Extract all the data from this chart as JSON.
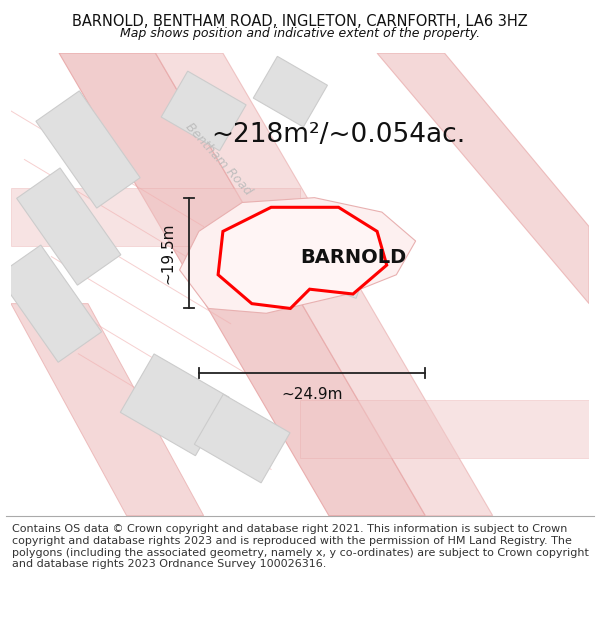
{
  "title": "BARNOLD, BENTHAM ROAD, INGLETON, CARNFORTH, LA6 3HZ",
  "subtitle": "Map shows position and indicative extent of the property.",
  "footer": "Contains OS data © Crown copyright and database right 2021. This information is subject to Crown copyright and database rights 2023 and is reproduced with the permission of HM Land Registry. The polygons (including the associated geometry, namely x, y co-ordinates) are subject to Crown copyright and database rights 2023 Ordnance Survey 100026316.",
  "background_color": "#ffffff",
  "area_label": "~218m²/~0.054ac.",
  "property_label": "BARNOLD",
  "dim_width": "~24.9m",
  "dim_height": "~19.5m",
  "road_label": "Bentham Road",
  "road_color": "#f0c8c8",
  "road_edge_color": "#e8a8a8",
  "building_fill": "#e0e0e0",
  "building_edge": "#cccccc",
  "red_color": "#ff0000",
  "arrow_color": "#222222",
  "title_fontsize": 10.5,
  "subtitle_fontsize": 9,
  "area_fontsize": 19,
  "property_fontsize": 14,
  "dim_fontsize": 11,
  "road_label_fontsize": 9,
  "footer_fontsize": 8
}
